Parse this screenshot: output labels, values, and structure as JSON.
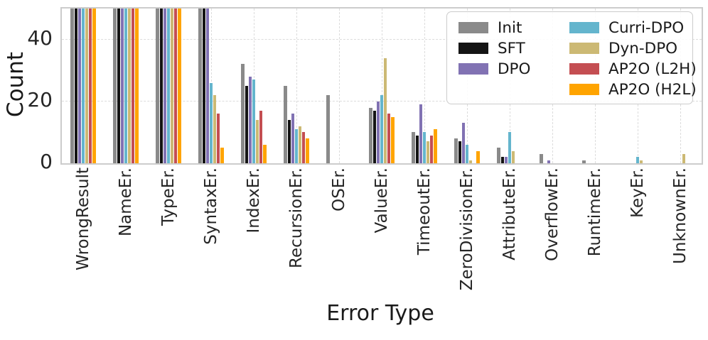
{
  "chart_data": {
    "type": "bar",
    "title": "",
    "xlabel": "Error Type",
    "ylabel": "Count",
    "ylim": [
      0,
      50
    ],
    "yticks": [
      0,
      20,
      40
    ],
    "grid": "dashed",
    "legend_position": "upper right",
    "legend_columns": 2,
    "categories": [
      "WrongResult",
      "NameEr.",
      "TypeEr.",
      "SyntaxEr.",
      "IndexEr.",
      "RecursionEr.",
      "OSEr.",
      "ValueEr.",
      "TimeoutEr.",
      "ZeroDivisionEr.",
      "AttributeEr.",
      "OverflowEr.",
      "RuntimeEr.",
      "KeyEr.",
      "UnknownEr."
    ],
    "series": [
      {
        "name": "Init",
        "color": "#8a8a8a",
        "values": [
          50,
          50,
          50,
          50,
          32,
          25,
          22,
          18,
          10,
          8,
          5,
          3,
          1,
          0,
          0
        ]
      },
      {
        "name": "SFT",
        "color": "#141414",
        "values": [
          50,
          50,
          50,
          50,
          25,
          14,
          0,
          17,
          9,
          7,
          2,
          0,
          0,
          0,
          0
        ]
      },
      {
        "name": "DPO",
        "color": "#8172b3",
        "values": [
          50,
          50,
          50,
          50,
          28,
          16,
          0,
          20,
          19,
          13,
          2,
          1,
          0,
          0,
          0
        ]
      },
      {
        "name": "Curri-DPO",
        "color": "#64b5cd",
        "values": [
          50,
          50,
          50,
          26,
          27,
          11,
          0,
          22,
          10,
          6,
          10,
          0,
          0,
          2,
          0
        ]
      },
      {
        "name": "Dyn-DPO",
        "color": "#ccb974",
        "values": [
          50,
          50,
          50,
          22,
          14,
          12,
          0,
          34,
          7,
          1,
          4,
          0,
          0,
          1,
          3
        ]
      },
      {
        "name": "AP2O (L2H)",
        "color": "#c44e52",
        "values": [
          50,
          50,
          50,
          16,
          17,
          10,
          0,
          16,
          9,
          0,
          0,
          0,
          0,
          0,
          0
        ]
      },
      {
        "name": "AP2O (H2L)",
        "color": "#ffa400",
        "values": [
          50,
          50,
          50,
          5,
          6,
          8,
          0,
          15,
          11,
          4,
          0,
          0,
          0,
          0,
          0
        ]
      }
    ]
  }
}
